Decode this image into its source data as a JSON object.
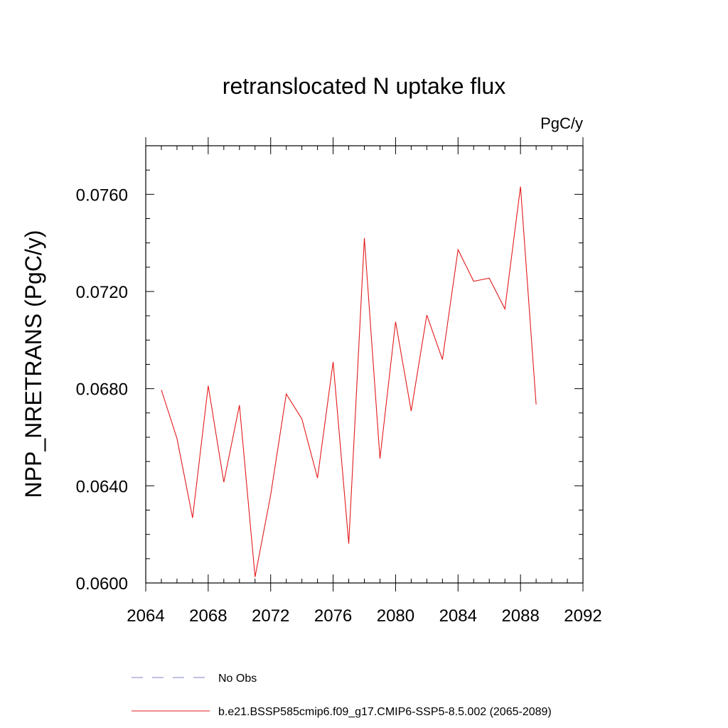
{
  "chart_data": {
    "type": "line",
    "title": "retranslocated N uptake flux",
    "units_label": "PgC/y",
    "ylabel": "NPP_NRETRANS  (PgC/y)",
    "xlabel": "",
    "xlim": [
      2064,
      2092
    ],
    "ylim": [
      0.06,
      0.078
    ],
    "x_ticks": [
      2064,
      2068,
      2072,
      2076,
      2080,
      2084,
      2088,
      2092
    ],
    "x_tick_labels": [
      "2064",
      "2068",
      "2072",
      "2076",
      "2080",
      "2084",
      "2088",
      "2092"
    ],
    "y_ticks": [
      0.06,
      0.064,
      0.068,
      0.072,
      0.076
    ],
    "y_tick_labels": [
      "0.0600",
      "0.0640",
      "0.0680",
      "0.0720",
      "0.0760"
    ],
    "x_minor_step": 1,
    "y_minor_step": 0.001,
    "grid": false,
    "legend_position": "bottom",
    "legend": [
      {
        "label": "No Obs",
        "style": "dashed",
        "color": "#8080c0"
      },
      {
        "label": "b.e21.BSSP585cmip6.f09_g17.CMIP6-SSP5-8.5.002 (2065-2089)",
        "style": "solid",
        "color": "#e31a1c"
      }
    ],
    "series": [
      {
        "name": "b.e21.BSSP585cmip6.f09_g17.CMIP6-SSP5-8.5.002 (2065-2089)",
        "color": "#e31a1c",
        "x": [
          2065,
          2066,
          2067,
          2068,
          2069,
          2070,
          2071,
          2072,
          2073,
          2074,
          2075,
          2076,
          2077,
          2078,
          2079,
          2080,
          2081,
          2082,
          2083,
          2084,
          2085,
          2086,
          2087,
          2088,
          2089
        ],
        "values": [
          0.06795,
          0.06595,
          0.06268,
          0.06812,
          0.06415,
          0.06732,
          0.06025,
          0.06362,
          0.06778,
          0.06675,
          0.06432,
          0.0691,
          0.06162,
          0.0742,
          0.06512,
          0.07075,
          0.06708,
          0.07103,
          0.0692,
          0.07372,
          0.07242,
          0.07255,
          0.07128,
          0.07632,
          0.06735
        ]
      }
    ]
  }
}
